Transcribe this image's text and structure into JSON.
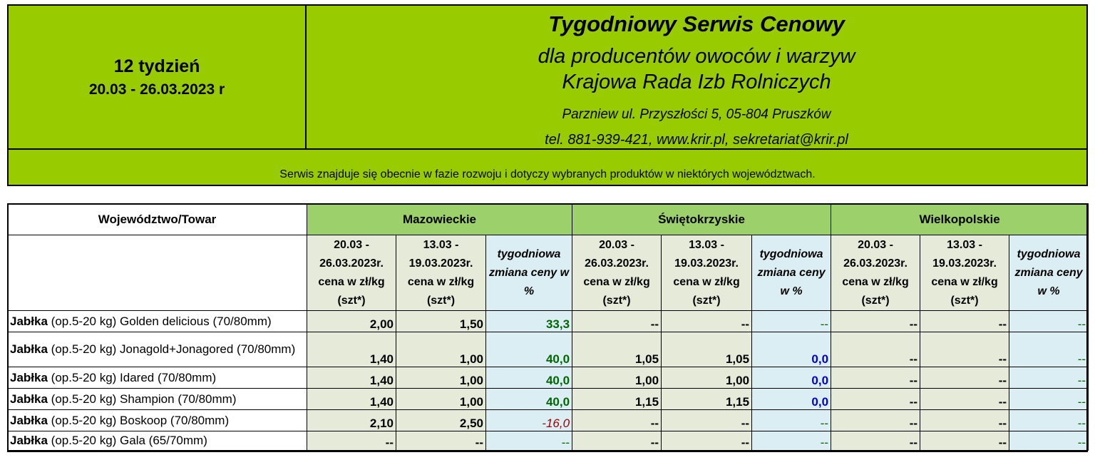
{
  "header": {
    "week": "12 tydzień",
    "dates": "20.03 - 26.03.2023 r",
    "title": "Tygodniowy Serwis Cenowy",
    "subtitle1": "dla producentów owoców i warzyw",
    "subtitle2": "Krajowa Rada Izb Rolniczych",
    "address": "Parzniew ul. Przyszłości 5, 05-804 Pruszków",
    "contact": "tel. 881-939-421, www.krir.pl, sekretariat@krir.pl",
    "notice": "Serwis znajduje się obecnie w  fazie rozwoju i dotyczy wybranych produktów w niektórych województwach.",
    "bg_color": "#99cc00"
  },
  "table": {
    "corner_label": "Województwo/Towar",
    "regions": [
      "Mazowieckie",
      "Świętokrzyskie",
      "Wielkopolskie"
    ],
    "col_current": "20.03 - 26.03.2023r. cena w zł/kg (szt*)",
    "col_previous": "13.03 - 19.03.2023r. cena w zł/kg (szt*)",
    "col_change_maz": "tygodniowa zmiana ceny w %",
    "col_change_swi": "tygodniowa zmiana ceny w %",
    "col_change_wlk": "tygodniowa zmiana ceny w %",
    "rows": [
      {
        "bold": "Jabłka",
        "rest": " (op.5-20 kg)  Golden delicious  (70/80mm)",
        "maz": [
          "2,00",
          "1,50",
          "33,3"
        ],
        "swi": [
          "--",
          "--",
          "--"
        ],
        "wlk": [
          "--",
          "--",
          "--"
        ]
      },
      {
        "bold": "Jabłka",
        "rest": " (op.5-20 kg) Jonagold+Jonagored (70/80mm)",
        "maz": [
          "1,40",
          "1,00",
          "40,0"
        ],
        "swi": [
          "1,05",
          "1,05",
          "0,0"
        ],
        "wlk": [
          "--",
          "--",
          "--"
        ]
      },
      {
        "bold": "Jabłka",
        "rest": " (op.5-20 kg)  Idared (70/80mm)",
        "maz": [
          "1,40",
          "1,00",
          "40,0"
        ],
        "swi": [
          "1,00",
          "1,00",
          "0,0"
        ],
        "wlk": [
          "--",
          "--",
          "--"
        ]
      },
      {
        "bold": "Jabłka",
        "rest": " (op.5-20 kg) Shampion (70/80mm)",
        "maz": [
          "1,40",
          "1,00",
          "40,0"
        ],
        "swi": [
          "1,15",
          "1,15",
          "0,0"
        ],
        "wlk": [
          "--",
          "--",
          "--"
        ]
      },
      {
        "bold": "Jabłka",
        "rest": " (op.5-20 kg) Boskoop (70/80mm)",
        "maz": [
          "2,10",
          "2,50",
          "-16,0"
        ],
        "swi": [
          "--",
          "--",
          "--"
        ],
        "wlk": [
          "--",
          "--",
          "--"
        ]
      },
      {
        "bold": "Jabłka",
        "rest": " (op.5-20 kg) Gala (65/70mm)",
        "maz": [
          "--",
          "--",
          "--"
        ],
        "swi": [
          "--",
          "--",
          "--"
        ],
        "wlk": [
          "--",
          "--",
          "--"
        ]
      }
    ]
  },
  "colors": {
    "region_header": "#9bd06b",
    "price_cell": "#e6ebd9",
    "change_cell": "#dbeef4",
    "positive": "#006600",
    "zero": "#0000cc",
    "negative": "#a00000"
  }
}
